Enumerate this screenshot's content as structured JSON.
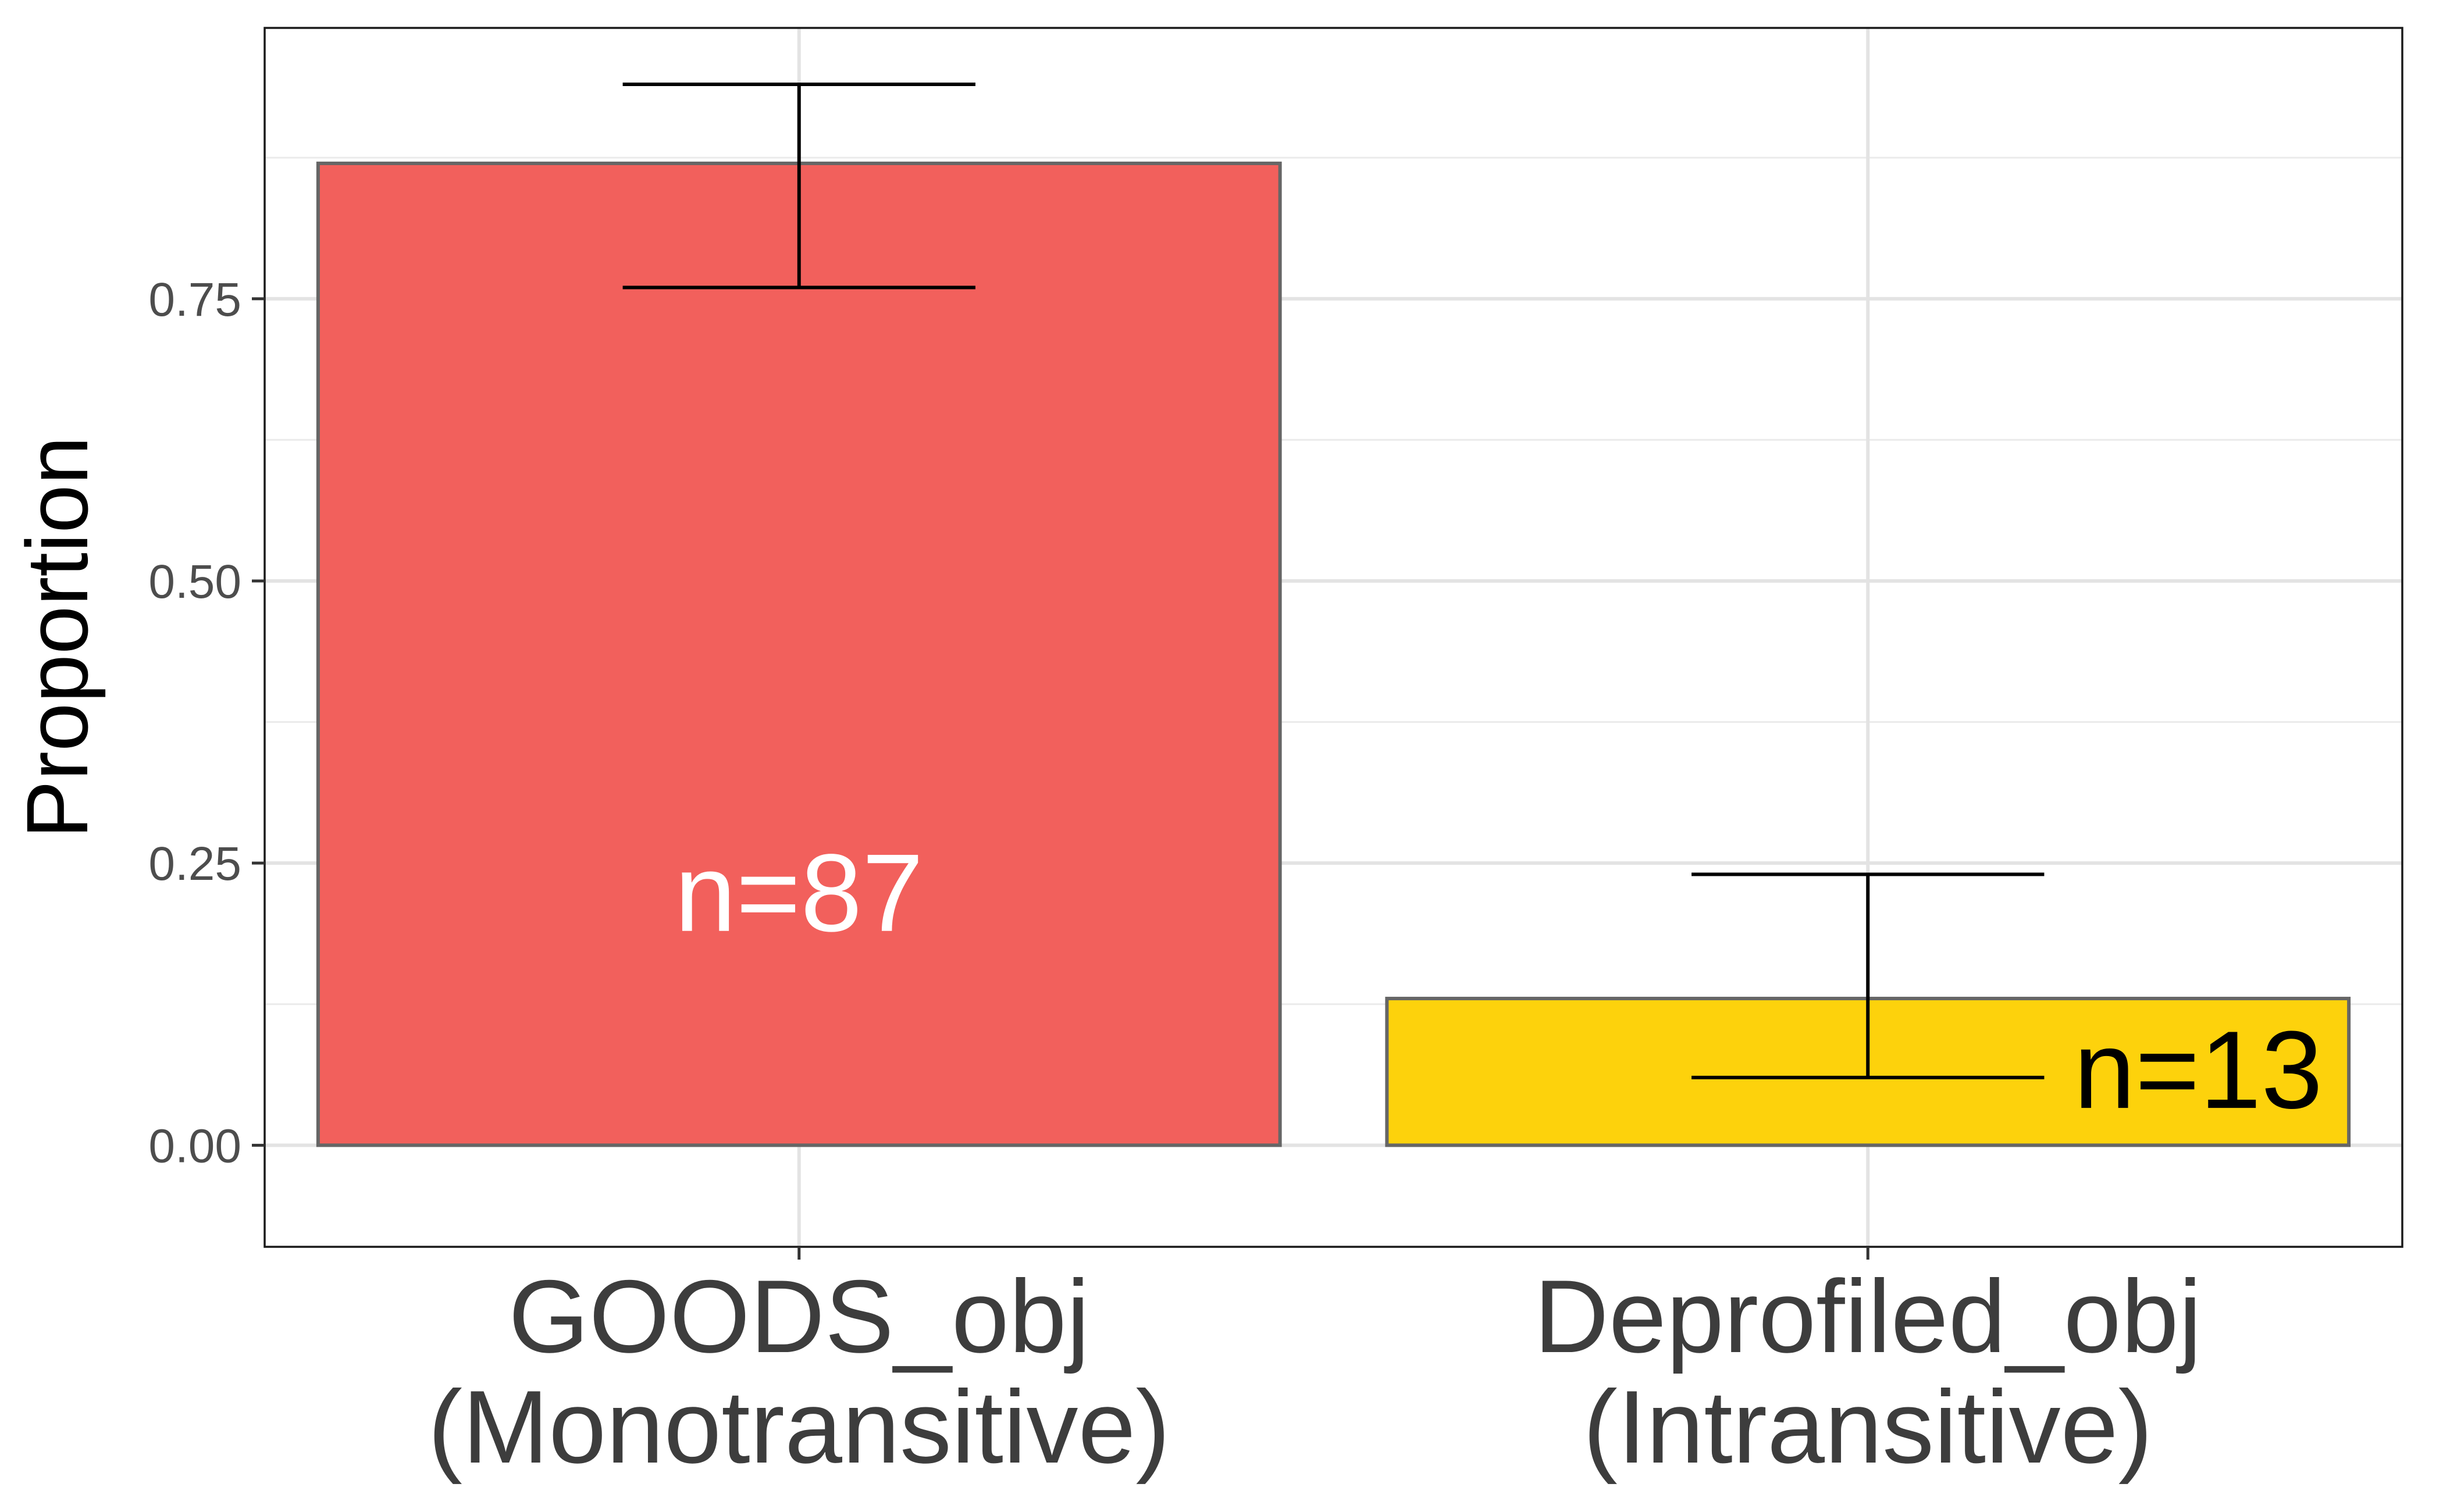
{
  "chart_data": {
    "type": "bar",
    "categories": [
      [
        "GOODS_obj",
        "(Monotransitive)"
      ],
      [
        "Deprofiled_obj",
        "(Intransitive)"
      ]
    ],
    "values": [
      0.87,
      0.13
    ],
    "error_low": [
      0.76,
      0.06
    ],
    "error_high": [
      0.94,
      0.24
    ],
    "bar_labels": [
      "n=87",
      "n=13"
    ],
    "bar_colors": [
      "#F2605C",
      "#FDD20C"
    ],
    "bar_label_colors": [
      "#ffffff",
      "#000000"
    ],
    "bar_border_color": "#666666",
    "ylabel": "Proportion",
    "xlabel": "",
    "ylim": [
      -0.09,
      0.99
    ],
    "y_ticks": [
      0.0,
      0.25,
      0.5,
      0.75
    ],
    "y_tick_labels": [
      "0.00",
      "0.25",
      "0.50",
      "0.75"
    ],
    "grid": true,
    "legend": "none"
  }
}
